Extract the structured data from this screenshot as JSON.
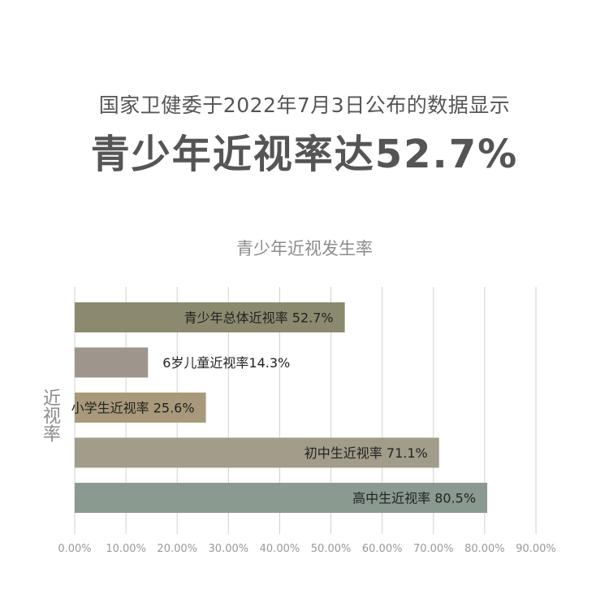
{
  "header": {
    "subtitle": "国家卫健委于2022年7月3日公布的数据显示",
    "title": "青少年近视率达52.7%"
  },
  "colors": {
    "grid": "#d0d0d0",
    "text": "#555555",
    "muted": "#8c8c8c"
  },
  "chart_data": {
    "type": "bar",
    "orientation": "horizontal",
    "title": "青少年近视发生率",
    "ylabel": "近视率",
    "xlabel": "",
    "xlim": [
      0,
      90
    ],
    "x_ticks": [
      "0.00%",
      "10.00%",
      "20.00%",
      "30.00%",
      "40.00%",
      "50.00%",
      "60.00%",
      "70.00%",
      "80.00%",
      "90.00%"
    ],
    "grid": "vertical",
    "bars": [
      {
        "label": "青少年总体近视率 52.7%",
        "value": 52.7,
        "color": "#8b8a6e"
      },
      {
        "label": "6岁儿童近视率14.3%",
        "value": 14.3,
        "color": "#9e968d"
      },
      {
        "label": "小学生近视率 25.6%",
        "value": 25.6,
        "color": "#a8997a"
      },
      {
        "label": "初中生近视率 71.1%",
        "value": 71.1,
        "color": "#a19d8a"
      },
      {
        "label": "高中生近视率 80.5%",
        "value": 80.5,
        "color": "#8a9a91"
      }
    ]
  }
}
